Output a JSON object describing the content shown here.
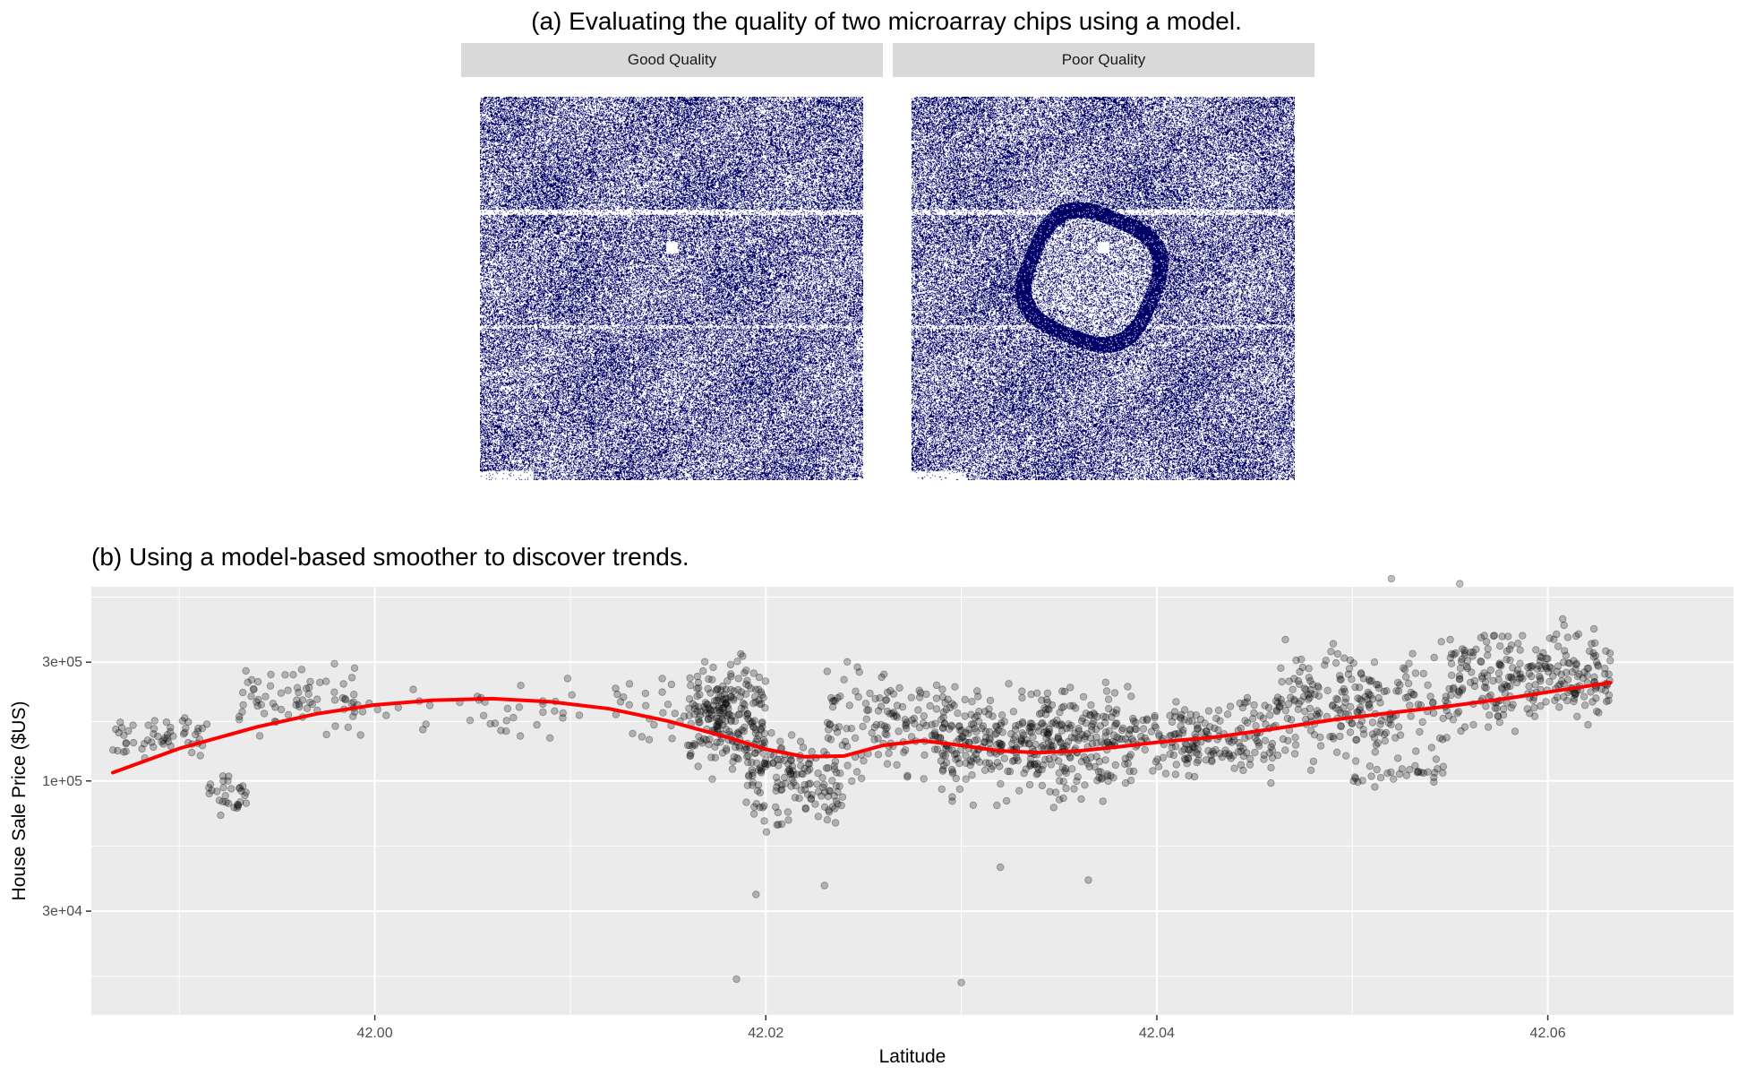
{
  "panel_a": {
    "title": "(a) Evaluating the quality of two microarray chips using a model.",
    "facets": [
      {
        "label": "Good Quality",
        "ring": false
      },
      {
        "label": "Poor Quality",
        "ring": true
      }
    ],
    "pixel_color": "#000066"
  },
  "chart_data": {
    "type": "scatter",
    "title": "(b) Using a model-based smoother to discover trends.",
    "xlabel": "Latitude",
    "ylabel": "House Sale Price ($US)",
    "xlim": [
      41.9855,
      42.0695
    ],
    "ylim_log10": [
      4.06,
      5.78
    ],
    "y_scale": "log10",
    "x_ticks": [
      42.0,
      42.02,
      42.04,
      42.06
    ],
    "x_tick_labels": [
      "42.00",
      "42.02",
      "42.04",
      "42.06"
    ],
    "y_ticks": [
      30000,
      100000,
      300000
    ],
    "y_tick_labels": [
      "3e+04",
      "1e+05",
      "3e+05"
    ],
    "point_color": "#000000",
    "point_alpha": 0.25,
    "smoother_color": "#ff0000",
    "panel_background": "#ebebeb",
    "grid": true,
    "smoother": {
      "x": [
        41.9866,
        41.99,
        41.994,
        41.997,
        42.0,
        42.003,
        42.006,
        42.009,
        42.012,
        42.015,
        42.018,
        42.02,
        42.022,
        42.024,
        42.026,
        42.028,
        42.03,
        42.032,
        42.034,
        42.036,
        42.038,
        42.04,
        42.043,
        42.046,
        42.049,
        42.052,
        42.055,
        42.058,
        42.061,
        42.0632
      ],
      "y": [
        108000,
        135000,
        165000,
        186000,
        202000,
        211000,
        214000,
        208000,
        195000,
        174000,
        150000,
        134000,
        125000,
        126000,
        139000,
        145000,
        139000,
        132000,
        130000,
        132000,
        137000,
        143000,
        150000,
        162000,
        176000,
        188000,
        200000,
        215000,
        234000,
        248000
      ]
    },
    "clusters": [
      {
        "x": [
          41.9866,
          41.9915
        ],
        "y_log10": [
          5.05,
          5.3
        ],
        "n": 55
      },
      {
        "x": [
          41.9915,
          41.9935
        ],
        "y_log10": [
          4.85,
          5.05
        ],
        "n": 30
      },
      {
        "x": [
          41.993,
          41.999
        ],
        "y_log10": [
          5.15,
          5.5
        ],
        "n": 70
      },
      {
        "x": [
          41.999,
          42.007
        ],
        "y_log10": [
          5.15,
          5.4
        ],
        "n": 25
      },
      {
        "x": [
          42.007,
          42.016
        ],
        "y_log10": [
          5.1,
          5.5
        ],
        "n": 40
      },
      {
        "x": [
          42.016,
          42.02
        ],
        "y_log10": [
          4.95,
          5.55
        ],
        "n": 240
      },
      {
        "x": [
          42.019,
          42.024
        ],
        "y_log10": [
          4.75,
          5.25
        ],
        "n": 140
      },
      {
        "x": [
          42.023,
          42.03
        ],
        "y_log10": [
          4.9,
          5.55
        ],
        "n": 150
      },
      {
        "x": [
          42.029,
          42.038
        ],
        "y_log10": [
          4.85,
          5.45
        ],
        "n": 380
      },
      {
        "x": [
          42.038,
          42.046
        ],
        "y_log10": [
          4.95,
          5.4
        ],
        "n": 210
      },
      {
        "x": [
          42.046,
          42.055
        ],
        "y_log10": [
          5.0,
          5.6
        ],
        "n": 230
      },
      {
        "x": [
          42.05,
          42.055
        ],
        "y_log10": [
          4.95,
          5.1
        ],
        "n": 30
      },
      {
        "x": [
          42.055,
          42.0632
        ],
        "y_log10": [
          5.15,
          5.7
        ],
        "n": 260
      }
    ],
    "outliers": [
      {
        "x": 42.0185,
        "y": 16000
      },
      {
        "x": 42.03,
        "y": 15500
      },
      {
        "x": 42.052,
        "y": 650000
      },
      {
        "x": 42.0555,
        "y": 620000
      },
      {
        "x": 42.0195,
        "y": 35000
      },
      {
        "x": 42.023,
        "y": 38000
      },
      {
        "x": 42.032,
        "y": 45000
      },
      {
        "x": 42.0365,
        "y": 40000
      }
    ]
  }
}
